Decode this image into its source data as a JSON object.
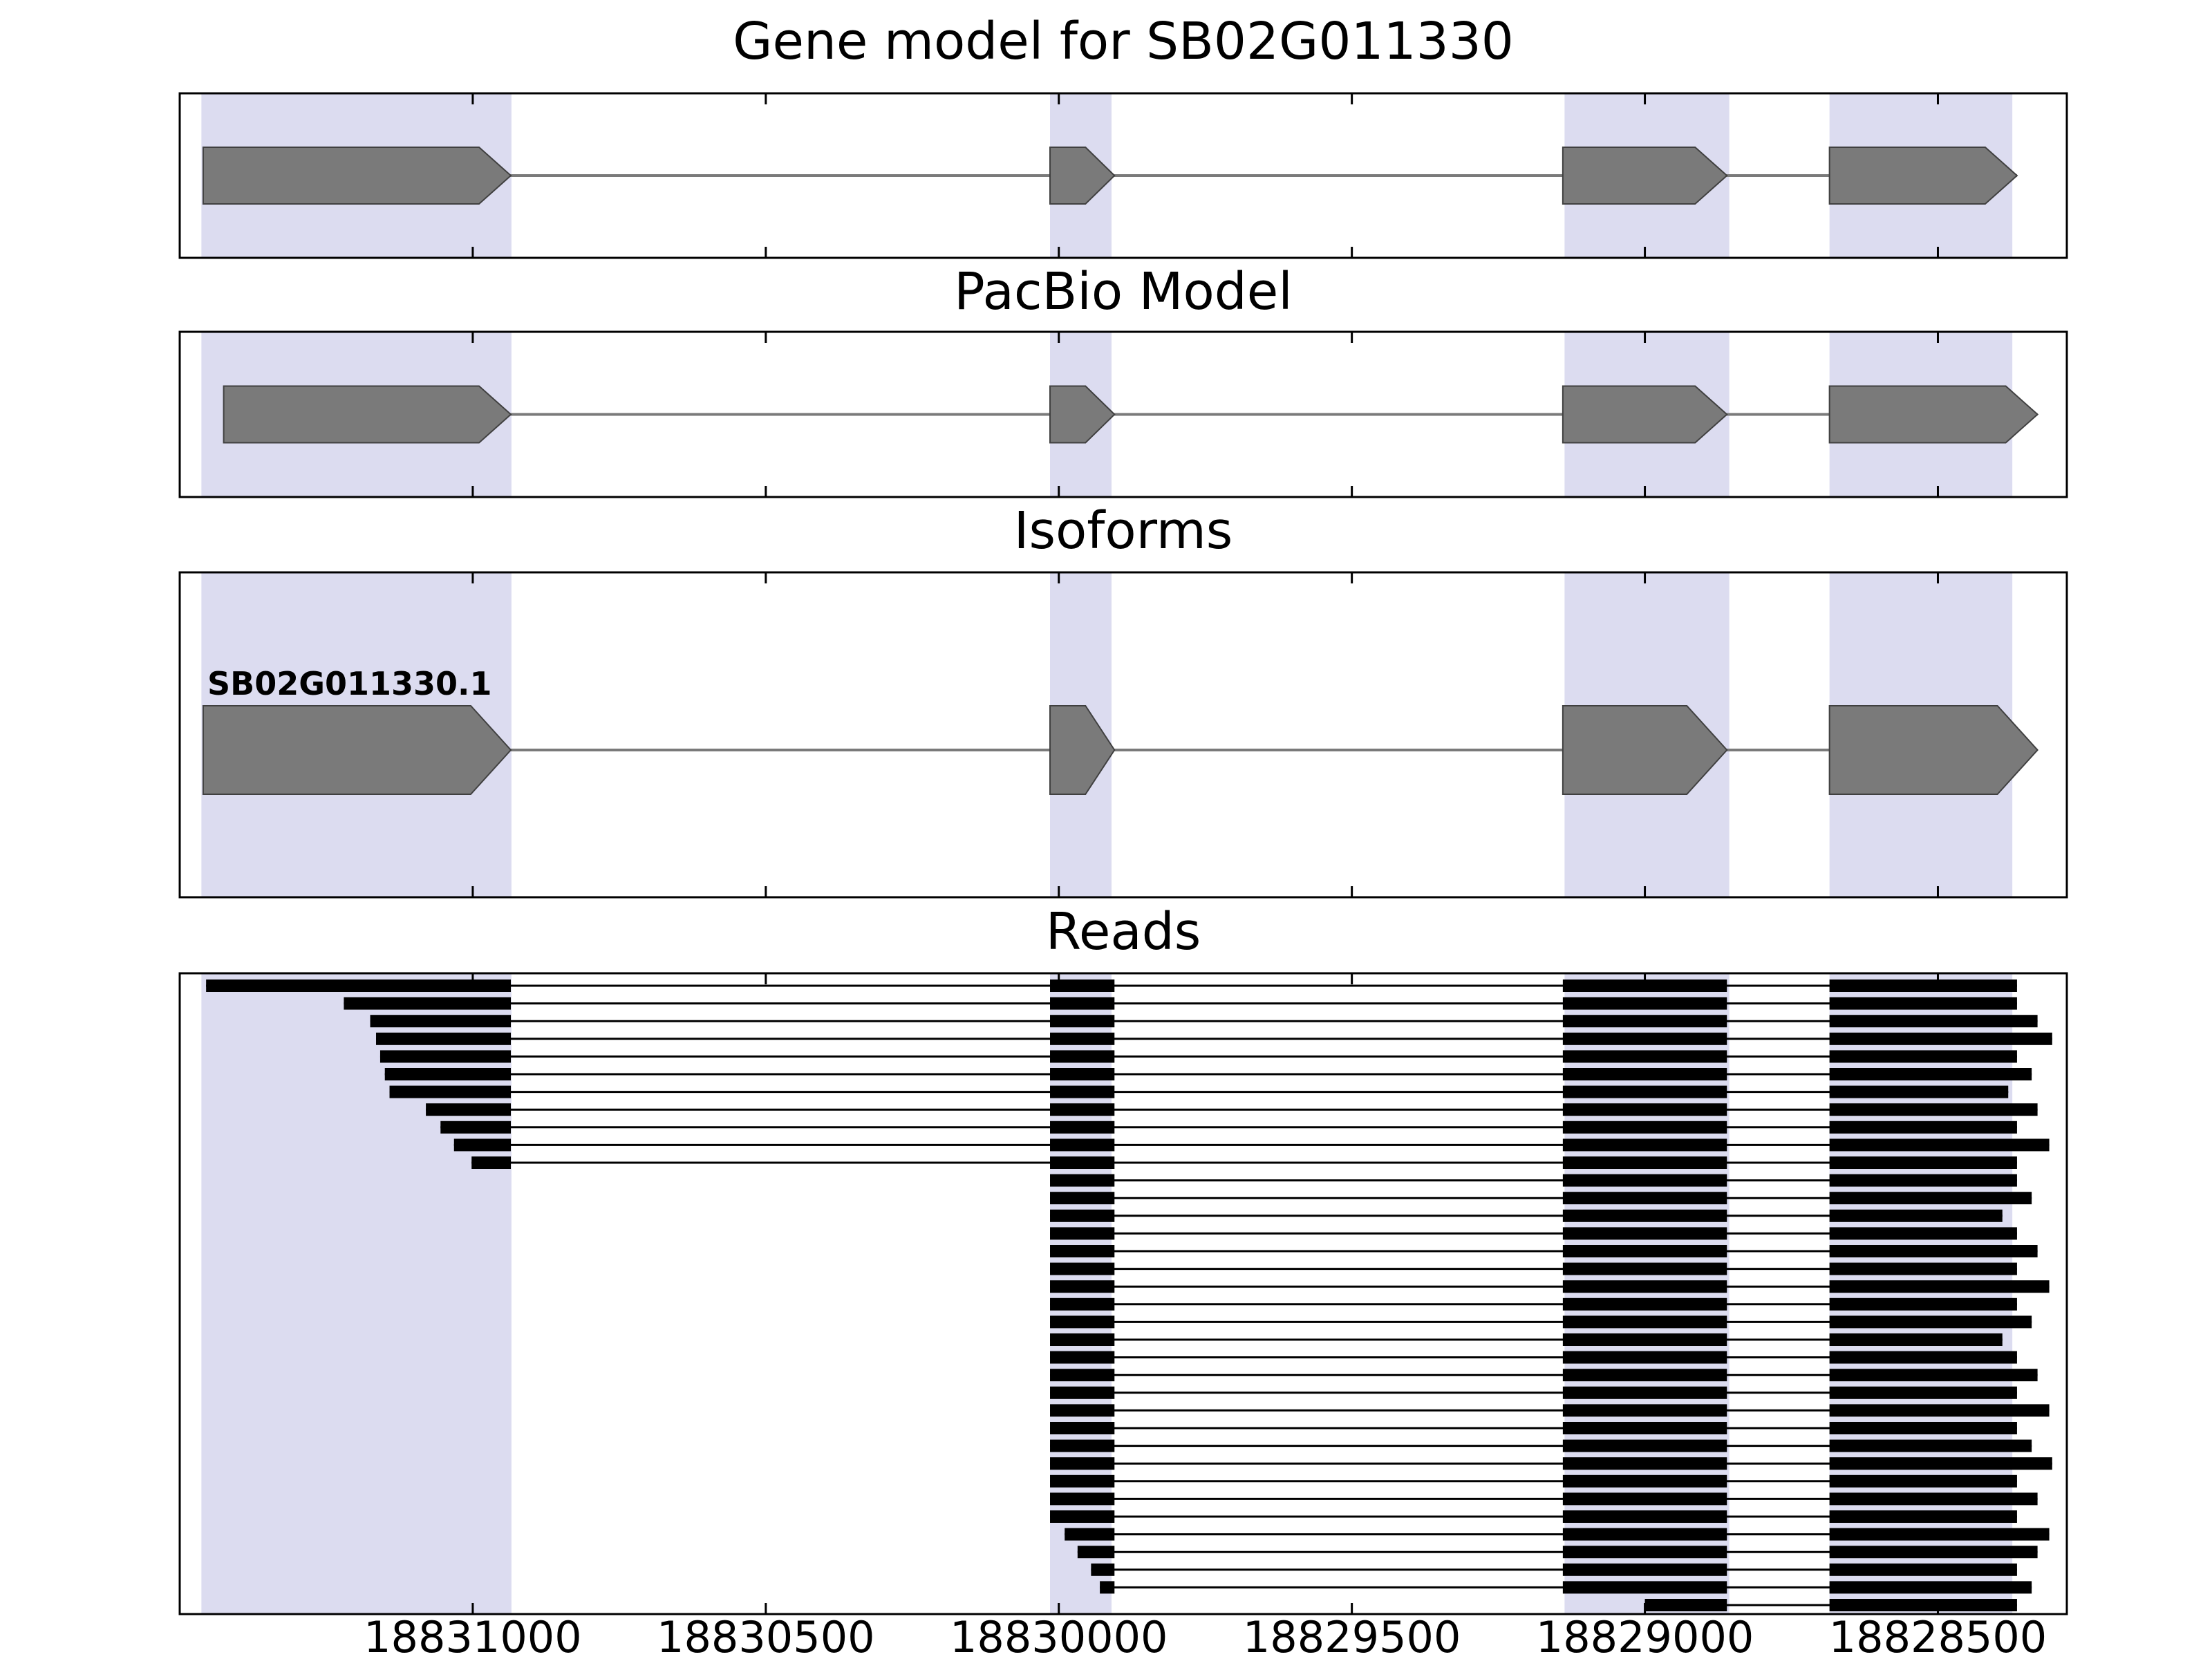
{
  "figure": {
    "background": "#ffffff"
  },
  "chart_data": {
    "type": "genome-browser",
    "x_axis": {
      "min": 18828280,
      "max": 18831500,
      "reversed": true,
      "ticks": [
        18831000,
        18830500,
        18830000,
        18829500,
        18829000,
        18828500
      ],
      "tick_labels": [
        "18831000",
        "18830500",
        "18830000",
        "18829500",
        "18829000",
        "18828500"
      ]
    },
    "highlight_color": "#dcdcf0",
    "highlight_regions": [
      [
        18831463,
        18830934
      ],
      [
        18830015,
        18829910
      ],
      [
        18829137,
        18828856
      ],
      [
        18828685,
        18828373
      ]
    ],
    "exon_color": "#7a7a7a",
    "exon_edge_color": "#404040",
    "read_color": "#000000",
    "panels": [
      {
        "id": "gene_model",
        "title": "Gene model for SB02G011330",
        "type": "transcript",
        "transcripts": [
          {
            "label": "",
            "strand": "forward",
            "exons": [
              [
                18831460,
                18830935
              ],
              [
                18830015,
                18829905
              ],
              [
                18829140,
                18828860
              ],
              [
                18828685,
                18828365
              ]
            ]
          }
        ]
      },
      {
        "id": "pacbio_model",
        "title": "PacBio Model",
        "type": "transcript",
        "transcripts": [
          {
            "label": "",
            "strand": "forward",
            "exons": [
              [
                18831425,
                18830935
              ],
              [
                18830015,
                18829905
              ],
              [
                18829140,
                18828860
              ],
              [
                18828685,
                18828330
              ]
            ]
          }
        ]
      },
      {
        "id": "isoforms",
        "title": "Isoforms",
        "type": "transcript",
        "transcripts": [
          {
            "label": "SB02G011330.1",
            "strand": "forward",
            "exons": [
              [
                18831460,
                18830935
              ],
              [
                18830015,
                18829905
              ],
              [
                18829140,
                18828860
              ],
              [
                18828685,
                18828330
              ]
            ]
          }
        ]
      },
      {
        "id": "reads",
        "title": "Reads",
        "type": "reads",
        "reads": [
          [
            [
              18831455,
              18830935
            ],
            [
              18830015,
              18829905
            ],
            [
              18829140,
              18828860
            ],
            [
              18828685,
              18828365
            ]
          ],
          [
            [
              18831220,
              18830935
            ],
            [
              18830015,
              18829905
            ],
            [
              18829140,
              18828860
            ],
            [
              18828685,
              18828365
            ]
          ],
          [
            [
              18831175,
              18830935
            ],
            [
              18830015,
              18829905
            ],
            [
              18829140,
              18828860
            ],
            [
              18828685,
              18828330
            ]
          ],
          [
            [
              18831165,
              18830935
            ],
            [
              18830015,
              18829905
            ],
            [
              18829140,
              18828860
            ],
            [
              18828685,
              18828305
            ]
          ],
          [
            [
              18831158,
              18830935
            ],
            [
              18830015,
              18829905
            ],
            [
              18829140,
              18828860
            ],
            [
              18828685,
              18828365
            ]
          ],
          [
            [
              18831150,
              18830935
            ],
            [
              18830015,
              18829905
            ],
            [
              18829140,
              18828860
            ],
            [
              18828685,
              18828340
            ]
          ],
          [
            [
              18831142,
              18830935
            ],
            [
              18830015,
              18829905
            ],
            [
              18829140,
              18828860
            ],
            [
              18828685,
              18828380
            ]
          ],
          [
            [
              18831080,
              18830935
            ],
            [
              18830015,
              18829905
            ],
            [
              18829140,
              18828860
            ],
            [
              18828685,
              18828330
            ]
          ],
          [
            [
              18831055,
              18830935
            ],
            [
              18830015,
              18829905
            ],
            [
              18829140,
              18828860
            ],
            [
              18828685,
              18828365
            ]
          ],
          [
            [
              18831032,
              18830935
            ],
            [
              18830015,
              18829905
            ],
            [
              18829140,
              18828860
            ],
            [
              18828685,
              18828310
            ]
          ],
          [
            [
              18831002,
              18830935
            ],
            [
              18830015,
              18829905
            ],
            [
              18829140,
              18828860
            ],
            [
              18828685,
              18828365
            ]
          ],
          [
            [
              18830015,
              18829905
            ],
            [
              18829140,
              18828860
            ],
            [
              18828685,
              18828365
            ]
          ],
          [
            [
              18830015,
              18829905
            ],
            [
              18829140,
              18828860
            ],
            [
              18828685,
              18828340
            ]
          ],
          [
            [
              18830015,
              18829905
            ],
            [
              18829140,
              18828860
            ],
            [
              18828685,
              18828390
            ]
          ],
          [
            [
              18830015,
              18829905
            ],
            [
              18829140,
              18828860
            ],
            [
              18828685,
              18828365
            ]
          ],
          [
            [
              18830015,
              18829905
            ],
            [
              18829140,
              18828860
            ],
            [
              18828685,
              18828330
            ]
          ],
          [
            [
              18830015,
              18829905
            ],
            [
              18829140,
              18828860
            ],
            [
              18828685,
              18828365
            ]
          ],
          [
            [
              18830015,
              18829905
            ],
            [
              18829140,
              18828860
            ],
            [
              18828685,
              18828310
            ]
          ],
          [
            [
              18830015,
              18829905
            ],
            [
              18829140,
              18828860
            ],
            [
              18828685,
              18828365
            ]
          ],
          [
            [
              18830015,
              18829905
            ],
            [
              18829140,
              18828860
            ],
            [
              18828685,
              18828340
            ]
          ],
          [
            [
              18830015,
              18829905
            ],
            [
              18829140,
              18828860
            ],
            [
              18828685,
              18828390
            ]
          ],
          [
            [
              18830015,
              18829905
            ],
            [
              18829140,
              18828860
            ],
            [
              18828685,
              18828365
            ]
          ],
          [
            [
              18830015,
              18829905
            ],
            [
              18829140,
              18828860
            ],
            [
              18828685,
              18828330
            ]
          ],
          [
            [
              18830015,
              18829905
            ],
            [
              18829140,
              18828860
            ],
            [
              18828685,
              18828365
            ]
          ],
          [
            [
              18830015,
              18829905
            ],
            [
              18829140,
              18828860
            ],
            [
              18828685,
              18828310
            ]
          ],
          [
            [
              18830015,
              18829905
            ],
            [
              18829140,
              18828860
            ],
            [
              18828685,
              18828365
            ]
          ],
          [
            [
              18830015,
              18829905
            ],
            [
              18829140,
              18828860
            ],
            [
              18828685,
              18828340
            ]
          ],
          [
            [
              18830015,
              18829905
            ],
            [
              18829140,
              18828860
            ],
            [
              18828685,
              18828305
            ]
          ],
          [
            [
              18830015,
              18829905
            ],
            [
              18829140,
              18828860
            ],
            [
              18828685,
              18828365
            ]
          ],
          [
            [
              18830015,
              18829905
            ],
            [
              18829140,
              18828860
            ],
            [
              18828685,
              18828330
            ]
          ],
          [
            [
              18830015,
              18829905
            ],
            [
              18829140,
              18828860
            ],
            [
              18828685,
              18828365
            ]
          ],
          [
            [
              18829990,
              18829905
            ],
            [
              18829140,
              18828860
            ],
            [
              18828685,
              18828310
            ]
          ],
          [
            [
              18829968,
              18829905
            ],
            [
              18829140,
              18828860
            ],
            [
              18828685,
              18828330
            ]
          ],
          [
            [
              18829945,
              18829905
            ],
            [
              18829140,
              18828860
            ],
            [
              18828685,
              18828365
            ]
          ],
          [
            [
              18829930,
              18829905
            ],
            [
              18829140,
              18828860
            ],
            [
              18828685,
              18828340
            ]
          ],
          [
            [
              18829000,
              18828860
            ],
            [
              18828685,
              18828365
            ]
          ]
        ]
      }
    ]
  }
}
